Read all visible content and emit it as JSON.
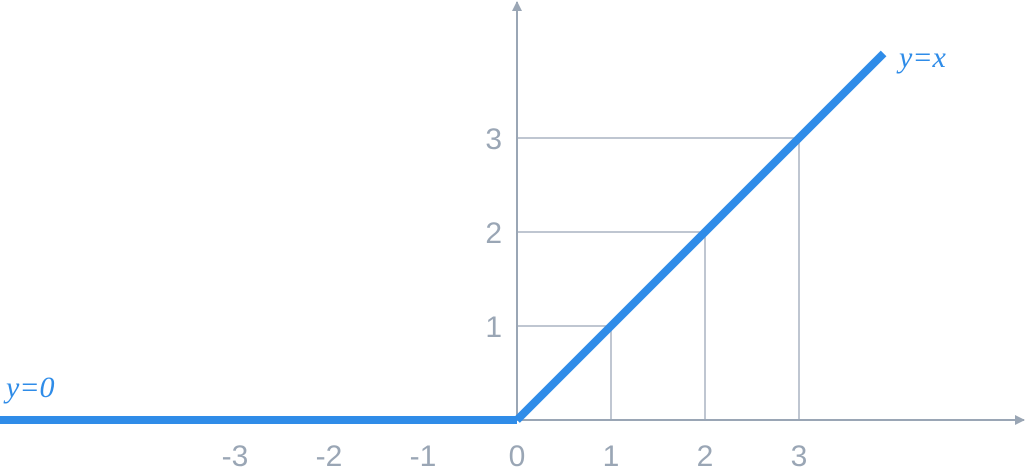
{
  "chart_data": {
    "type": "line",
    "title": "",
    "xlabel": "",
    "ylabel": "",
    "xlim": [
      -5.5,
      5.3
    ],
    "ylim": [
      0,
      4.4
    ],
    "x_ticks": [
      "-3",
      "-2",
      "-1",
      "0",
      "1",
      "2",
      "3"
    ],
    "y_ticks": [
      "1",
      "2",
      "3"
    ],
    "guides": [
      1,
      2,
      3
    ],
    "series": [
      {
        "label": "y=0",
        "points": [
          [
            -5.5,
            0
          ],
          [
            0,
            0
          ]
        ]
      },
      {
        "label": "y=x",
        "points": [
          [
            0,
            0
          ],
          [
            3.9,
            3.9
          ]
        ]
      }
    ],
    "colors": {
      "line": "#2f8ce8",
      "axis": "#9aa6b5",
      "grid": "#aab4c2"
    }
  }
}
